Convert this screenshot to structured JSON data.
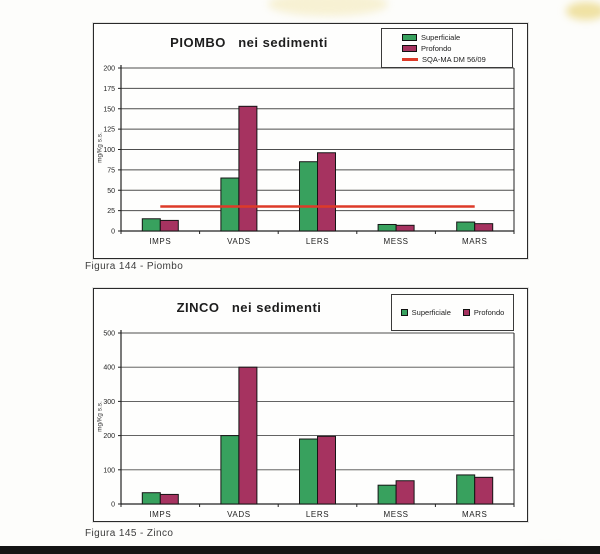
{
  "figures": [
    {
      "caption": "Figura 144 - Piombo"
    },
    {
      "caption": "Figura 145 - Zinco"
    }
  ],
  "colors": {
    "superficiale": "#38a15e",
    "profondo": "#a63360",
    "ref_line": "#dd3a28"
  },
  "chart_data": [
    {
      "type": "bar",
      "title": "PIOMBO   nei sedimenti",
      "ylabel": "mg/Kg s.s.",
      "categories": [
        "IMPS",
        "VADS",
        "LERS",
        "MESS",
        "MARS"
      ],
      "series": [
        {
          "name": "Superficiale",
          "color": "#38a15e",
          "values": [
            15,
            65,
            85,
            8,
            11
          ]
        },
        {
          "name": "Profondo",
          "color": "#a63360",
          "values": [
            13,
            153,
            96,
            7,
            9
          ]
        }
      ],
      "ref_line": {
        "label": "SQA-MA DM 56/09",
        "value": 30,
        "color": "#dd3a28"
      },
      "ylim": [
        0,
        200
      ],
      "ytick_step": 25,
      "grid": true,
      "legend_position": "top-right"
    },
    {
      "type": "bar",
      "title": "ZINCO   nei sedimenti",
      "ylabel": "mg/Kg s.s.",
      "categories": [
        "IMPS",
        "VADS",
        "LERS",
        "MESS",
        "MARS"
      ],
      "series": [
        {
          "name": "Superficiale",
          "color": "#38a15e",
          "values": [
            33,
            200,
            190,
            55,
            85
          ]
        },
        {
          "name": "Profondo",
          "color": "#a63360",
          "values": [
            28,
            400,
            198,
            68,
            78
          ]
        }
      ],
      "ylim": [
        0,
        500
      ],
      "ytick_step": 100,
      "grid": true,
      "legend_position": "top-right"
    }
  ]
}
